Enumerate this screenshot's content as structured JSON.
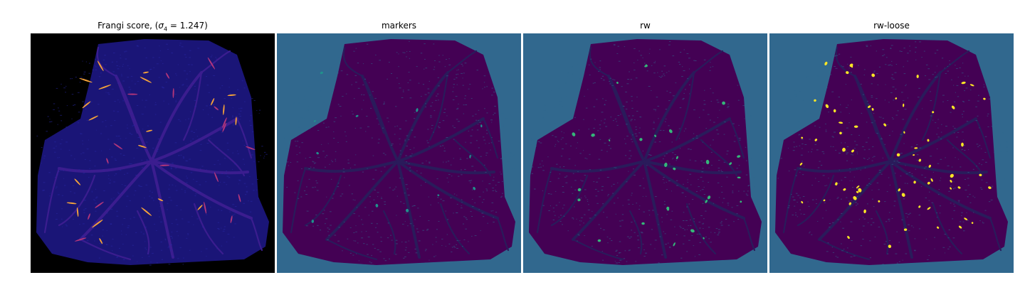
{
  "figure": {
    "panels": [
      {
        "id": "frangi",
        "title_prefix": "Frangi score, (",
        "title_sigma": "σ",
        "title_sub": "4",
        "title_suffix": " = 1.247)",
        "background": "#000000",
        "tissue": "#1a1577",
        "vessel": "#3b1d8f",
        "highlight": "#f4a23a",
        "highlight_dim": "#b3367a"
      },
      {
        "id": "markers",
        "title": "markers",
        "background": "#31688e",
        "tissue": "#440154",
        "vessel": "#2a1b5b",
        "highlight": "#21918c"
      },
      {
        "id": "rw",
        "title": "rw",
        "background": "#31688e",
        "tissue": "#440154",
        "vessel": "#2a1b5b",
        "highlight": "#35b779"
      },
      {
        "id": "rw-loose",
        "title": "rw-loose",
        "background": "#31688e",
        "tissue": "#440154",
        "vessel": "#2a1b5b",
        "highlight": "#fde725"
      }
    ]
  }
}
